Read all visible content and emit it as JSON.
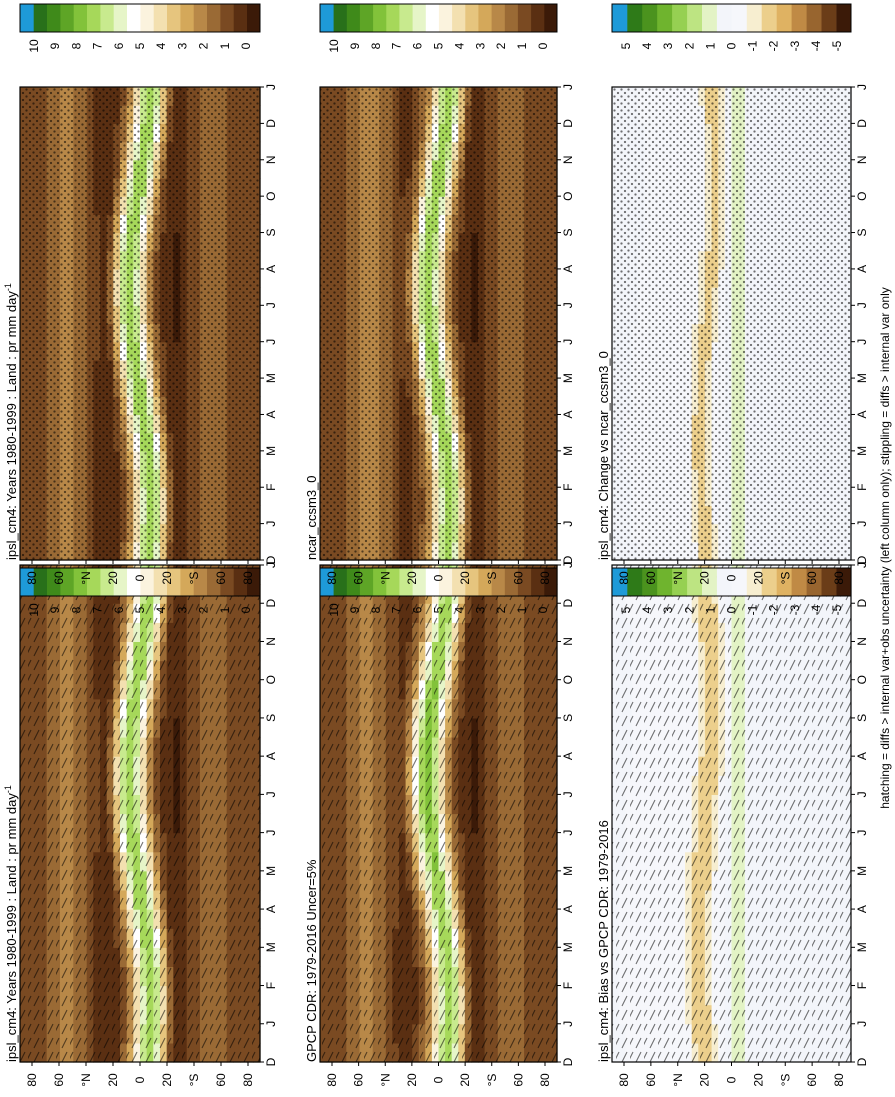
{
  "colors": {
    "precip_scale": [
      "#3b1a08",
      "#5a2f12",
      "#7a4a22",
      "#9a6a35",
      "#b88848",
      "#d4a85a",
      "#e6c57e",
      "#f3e0b0",
      "#fbf3de",
      "#ffffff",
      "#e6f5c8",
      "#c8ea8e",
      "#a6d85a",
      "#82c23a",
      "#5ea526",
      "#3f8a1a",
      "#28701a",
      "#1e9ad8"
    ],
    "diff_scale": [
      "#3b1a08",
      "#6b3d18",
      "#98652f",
      "#c08a45",
      "#dfb262",
      "#eccf8c",
      "#f7eed0",
      "#f6f7fb",
      "#f3f5fa",
      "#e3f3c5",
      "#bde482",
      "#96d052",
      "#6fb42e",
      "#4b931e",
      "#2e7a18",
      "#1e9ad8"
    ]
  },
  "footer": "hatching = diffs > internal var+obs uncertainty (left column only); stippling = diffs > internal var only",
  "chart_data": [
    {
      "type": "heatmap",
      "title": "ipsl_cm4: Years 1980-1999 : Land : pr mm day",
      "title_sup": "-1",
      "x_tick_labels": [
        "D",
        "J",
        "F",
        "M",
        "A",
        "M",
        "J",
        "J",
        "A",
        "S",
        "O",
        "N",
        "D",
        "J"
      ],
      "y_tick_labels": [
        "80",
        "60",
        "°N",
        "20",
        "0",
        "20",
        "°S",
        "60",
        "80"
      ],
      "colorbar_ticks": [
        "10",
        "9",
        "8",
        "7",
        "6",
        "5",
        "4",
        "3",
        "2",
        "1",
        "0"
      ],
      "overlay": "hatching",
      "field": "ipsl"
    },
    {
      "type": "heatmap",
      "title": "ipsl_cm4: Years 1980-1999 : Land : pr mm day",
      "title_sup": "-1",
      "x_tick_labels": [
        "D",
        "J",
        "F",
        "M",
        "A",
        "M",
        "J",
        "J",
        "A",
        "S",
        "O",
        "N",
        "D",
        "J"
      ],
      "y_tick_labels": [
        "80",
        "60",
        "°N",
        "20",
        "0",
        "20",
        "°S",
        "60",
        "80"
      ],
      "colorbar_ticks": [
        "10",
        "9",
        "8",
        "7",
        "6",
        "5",
        "4",
        "3",
        "2",
        "1",
        "0"
      ],
      "overlay": "stippling",
      "field": "ipsl"
    },
    {
      "type": "heatmap",
      "title": "GPCP CDR: 1979-2016 Uncer=5%",
      "title_sup": "",
      "x_tick_labels": [
        "D",
        "J",
        "F",
        "M",
        "A",
        "M",
        "J",
        "J",
        "A",
        "S",
        "O",
        "N",
        "D",
        "J"
      ],
      "y_tick_labels": [
        "80",
        "60",
        "°N",
        "20",
        "0",
        "20",
        "°S",
        "60",
        "80"
      ],
      "colorbar_ticks": [
        "10",
        "9",
        "8",
        "7",
        "6",
        "5",
        "4",
        "3",
        "2",
        "1",
        "0"
      ],
      "overlay": "hatching",
      "field": "gpcp"
    },
    {
      "type": "heatmap",
      "title": "ncar_ccsm3_0",
      "title_sup": "",
      "x_tick_labels": [
        "D",
        "J",
        "F",
        "M",
        "A",
        "M",
        "J",
        "J",
        "A",
        "S",
        "O",
        "N",
        "D",
        "J"
      ],
      "y_tick_labels": [
        "80",
        "60",
        "°N",
        "20",
        "0",
        "20",
        "°S",
        "60",
        "80"
      ],
      "colorbar_ticks": [
        "10",
        "9",
        "8",
        "7",
        "6",
        "5",
        "4",
        "3",
        "2",
        "1",
        "0"
      ],
      "overlay": "stippling",
      "field": "ncar"
    },
    {
      "type": "heatmap",
      "title": "ipsl_cm4: Bias vs GPCP CDR: 1979-2016",
      "title_sup": "",
      "x_tick_labels": [
        "D",
        "J",
        "F",
        "M",
        "A",
        "M",
        "J",
        "J",
        "A",
        "S",
        "O",
        "N",
        "D",
        "J"
      ],
      "y_tick_labels": [
        "80",
        "60",
        "°N",
        "20",
        "0",
        "20",
        "°S",
        "60",
        "80"
      ],
      "colorbar_ticks": [
        "5",
        "4",
        "3",
        "2",
        "1",
        "0",
        "-1",
        "-2",
        "-3",
        "-4",
        "-5"
      ],
      "overlay": "hatching",
      "field": "bias"
    },
    {
      "type": "heatmap",
      "title": "ipsl_cm4: Change vs ncar_ccsm3_0",
      "title_sup": "",
      "x_tick_labels": [
        "D",
        "J",
        "F",
        "M",
        "A",
        "M",
        "J",
        "J",
        "A",
        "S",
        "O",
        "N",
        "D",
        "J"
      ],
      "y_tick_labels": [
        "80",
        "60",
        "°N",
        "20",
        "0",
        "20",
        "°S",
        "60",
        "80"
      ],
      "colorbar_ticks": [
        "5",
        "4",
        "3",
        "2",
        "1",
        "0",
        "-1",
        "-2",
        "-3",
        "-4",
        "-5"
      ],
      "overlay": "stippling",
      "field": "change"
    }
  ]
}
